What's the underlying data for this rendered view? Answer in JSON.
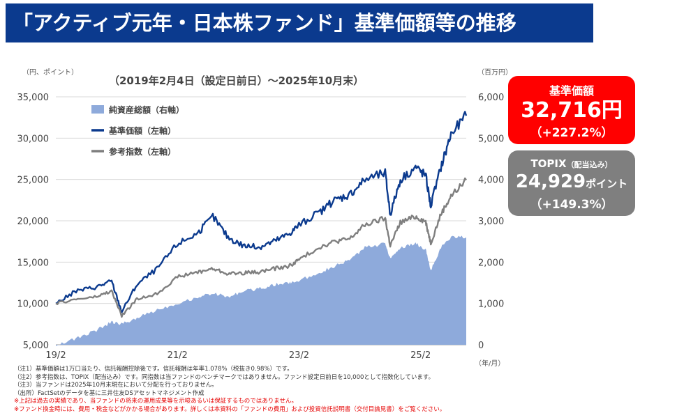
{
  "title": "「アクティブ元年・日本株ファンド」基準価額等の推移",
  "chart_data": {
    "type": "line",
    "period_label": "（2019年2月4日（設定日前日）～2025年10月末）",
    "left_axis_unit": "（円、ポイント）",
    "right_axis_unit": "（百万円）",
    "x_unit": "（年/月）",
    "x_ticks": [
      "19/2",
      "21/2",
      "23/2",
      "25/2"
    ],
    "y_left_ticks": [
      "5,000",
      "10,000",
      "15,000",
      "20,000",
      "25,000",
      "30,000",
      "35,000"
    ],
    "y_right_ticks": [
      "0",
      "1,000",
      "2,000",
      "3,000",
      "4,000",
      "5,000",
      "6,000"
    ],
    "ylim_left": [
      5000,
      35000
    ],
    "ylim_right": [
      0,
      6000
    ],
    "x_values": [
      "2019-02",
      "2019-06",
      "2019-10",
      "2020-01",
      "2020-03",
      "2020-06",
      "2020-10",
      "2021-02",
      "2021-06",
      "2021-09",
      "2021-12",
      "2022-03",
      "2022-06",
      "2022-09",
      "2022-12",
      "2023-02",
      "2023-06",
      "2023-09",
      "2023-12",
      "2024-03",
      "2024-07",
      "2024-08",
      "2024-10",
      "2025-01",
      "2025-03",
      "2025-04",
      "2025-06",
      "2025-08",
      "2025-10"
    ],
    "series": [
      {
        "name": "純資産総額（右軸）",
        "axis": "right",
        "color": "#8eaadb",
        "style": "area",
        "values": [
          0,
          150,
          350,
          550,
          500,
          650,
          850,
          1000,
          1150,
          1250,
          1150,
          1300,
          1350,
          1450,
          1500,
          1550,
          1750,
          1900,
          2050,
          2350,
          2450,
          2100,
          2350,
          2450,
          2300,
          1800,
          2350,
          2600,
          2620
        ]
      },
      {
        "name": "基準価額（左軸）",
        "axis": "left",
        "color": "#0b3a8e",
        "style": "line",
        "values": [
          10000,
          11500,
          12000,
          12700,
          9000,
          12300,
          14200,
          17200,
          18500,
          20500,
          18000,
          17000,
          16800,
          17500,
          18400,
          19500,
          21000,
          22500,
          23200,
          25000,
          25800,
          20800,
          25000,
          26500,
          25500,
          21800,
          26500,
          30500,
          32716
        ]
      },
      {
        "name": "参考指数（左軸）",
        "axis": "left",
        "color": "#7f7f7f",
        "style": "line",
        "values": [
          10000,
          10500,
          10800,
          11500,
          8500,
          10500,
          11200,
          13200,
          13800,
          14200,
          13600,
          13700,
          13800,
          14200,
          14500,
          15300,
          16800,
          17500,
          17800,
          19500,
          20300,
          17000,
          19800,
          20500,
          19900,
          17300,
          20800,
          23000,
          24929
        ]
      }
    ]
  },
  "boxes": {
    "nav": {
      "label": "基準価額",
      "value": "32,716円",
      "change": "（+227.2%）"
    },
    "topix": {
      "label": "TOPIX",
      "label_small": "（配当込み）",
      "value": "24,929",
      "value_unit": "ポイント",
      "change": "（+149.3%）"
    }
  },
  "notes": [
    "（注1）基準価額は1万口当たり、信託報酬控除後です。信託報酬は年率1.078%（税抜き0.98%）です。",
    "（注2）参考指数は、TOPIX（配当込み）です。同指数は当ファンドのベンチマークではありません。ファンド設定日前日を10,000として指数化しています。",
    "（注3）当ファンドは2025年10月末現在において分配を行っておりません。",
    "（出所）FactSetのデータを基に三井住友DSアセットマネジメント作成"
  ],
  "warnings": [
    "※上記は過去の実績であり、当ファンドの将来の運用成果等を示唆あるいは保証するものではありません。",
    "※ファンド換金時には、費用・税金などがかかる場合があります。詳しくは本資料の「ファンドの費用」および投資信託説明書（交付目論見書）をご覧ください。"
  ]
}
